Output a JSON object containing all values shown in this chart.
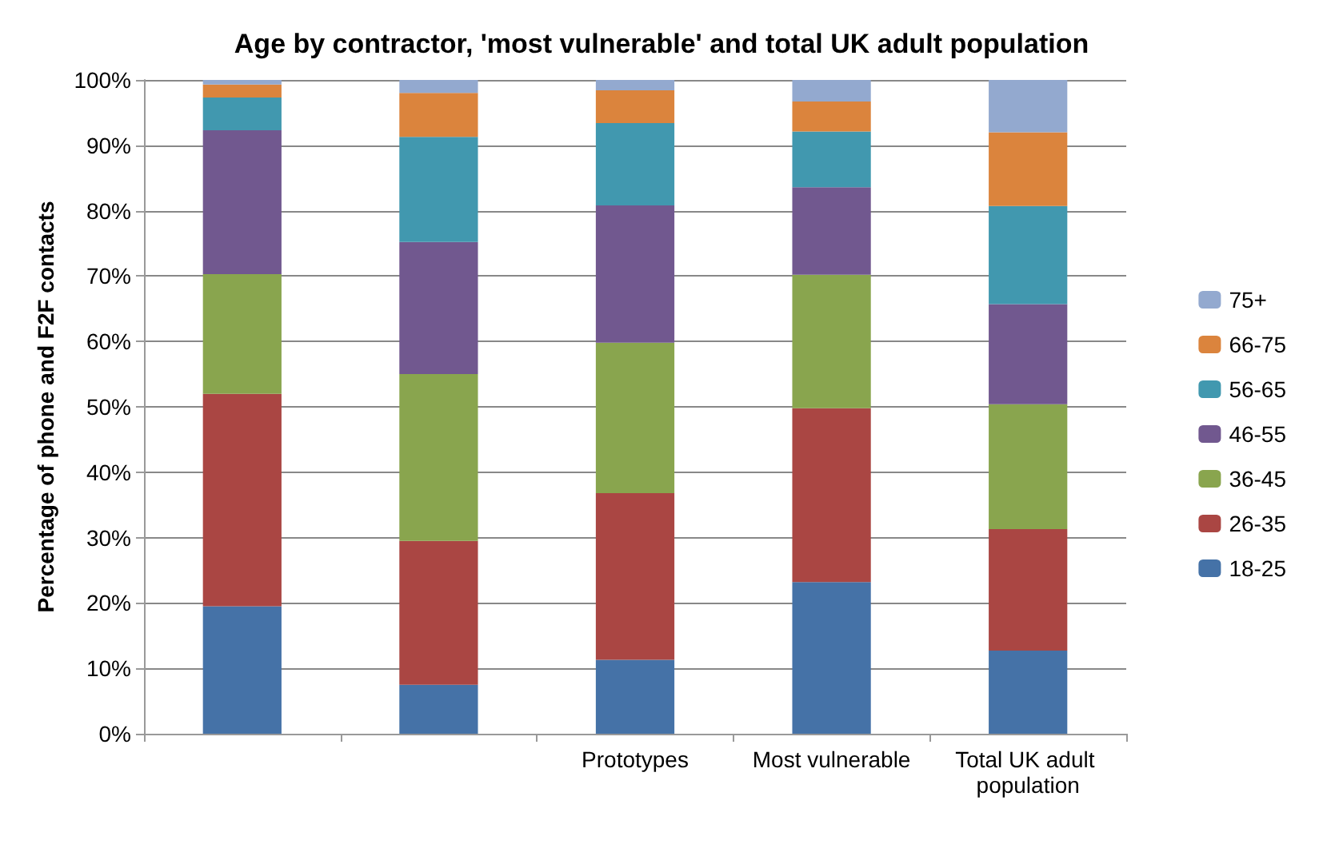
{
  "chart_data": {
    "type": "bar",
    "stacked": true,
    "title": "Age by contractor, 'most vulnerable' and total UK adult population",
    "ylabel": "Percentage of phone and F2F contacts",
    "categories": [
      null,
      null,
      "Prototypes",
      "Most vulnerable",
      "Total UK adult population"
    ],
    "series": [
      {
        "name": "18-25",
        "color": "#4572a7",
        "values": [
          19.5,
          7.5,
          11.3,
          23.2,
          12.7
        ]
      },
      {
        "name": "26-35",
        "color": "#aa4643",
        "values": [
          32.5,
          22,
          25.5,
          26.6,
          18.6
        ]
      },
      {
        "name": "36-45",
        "color": "#89a54e",
        "values": [
          18.3,
          25.5,
          23,
          20.4,
          19.1
        ]
      },
      {
        "name": "46-55",
        "color": "#71588f",
        "values": [
          22,
          20.2,
          21,
          13.4,
          15.3
        ]
      },
      {
        "name": "56-65",
        "color": "#4198af",
        "values": [
          5,
          16.1,
          12.6,
          8.5,
          15
        ]
      },
      {
        "name": "66-75",
        "color": "#db843d",
        "values": [
          2,
          6.7,
          5,
          4.6,
          11.3
        ]
      },
      {
        "name": "75+",
        "color": "#93a9cf",
        "values": [
          0.7,
          2,
          1.6,
          3.3,
          8
        ]
      }
    ],
    "ylim": [
      0,
      100
    ],
    "yticks": [
      {
        "value": 0,
        "label": "0%"
      },
      {
        "value": 10,
        "label": "10%"
      },
      {
        "value": 20,
        "label": "20%"
      },
      {
        "value": 30,
        "label": "30%"
      },
      {
        "value": 40,
        "label": "40%"
      },
      {
        "value": 50,
        "label": "50%"
      },
      {
        "value": 60,
        "label": "60%"
      },
      {
        "value": 70,
        "label": "70%"
      },
      {
        "value": 80,
        "label": "80%"
      },
      {
        "value": 90,
        "label": "90%"
      },
      {
        "value": 100,
        "label": "100%"
      }
    ],
    "grid": "y",
    "legend": "right"
  }
}
